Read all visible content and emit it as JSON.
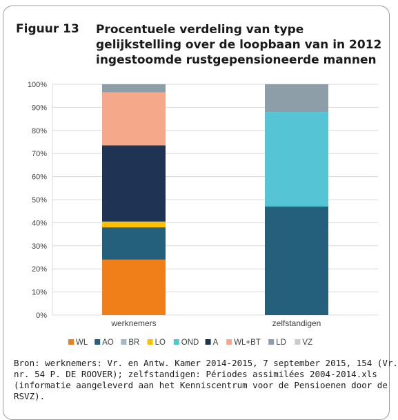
{
  "figure": {
    "label": "Figuur 13",
    "title_lines": [
      "Procentuele verdeling van type",
      "gelijkstelling over de loopbaan van in 2012",
      "ingestoomde rustgepensioneerde mannen"
    ]
  },
  "source_lines": [
    "Bron: werknemers: Vr. en Antw. Kamer 2014-2015, 7 september 2015, 154 (Vr.",
    "nr. 54 P. DE ROOVER); zelfstandigen: Périodes assimilées 2004-2014.xls",
    "(informatie aangeleverd aan het Kenniscentrum voor de Pensioenen door de",
    "RSVZ)."
  ],
  "chart_data": {
    "type": "bar",
    "stacked": true,
    "categories": [
      "werknemers",
      "zelfstandigen"
    ],
    "ylim": [
      0,
      100
    ],
    "y_ticks": [
      0,
      10,
      20,
      30,
      40,
      50,
      60,
      70,
      80,
      90,
      100
    ],
    "y_tick_labels": [
      "0%",
      "10%",
      "20%",
      "30%",
      "40%",
      "50%",
      "60%",
      "70%",
      "80%",
      "90%",
      "100%"
    ],
    "grid": true,
    "legend_position": "bottom",
    "series": [
      {
        "name": "WL",
        "color": "#f07f1a",
        "values": [
          24,
          0
        ]
      },
      {
        "name": "AO",
        "color": "#24607b",
        "values": [
          14,
          47
        ]
      },
      {
        "name": "BR",
        "color": "#a3b8c4",
        "values": [
          0,
          0
        ]
      },
      {
        "name": "LO",
        "color": "#ffc000",
        "values": [
          2.5,
          0
        ]
      },
      {
        "name": "OND",
        "color": "#55c5d5",
        "values": [
          0,
          41
        ]
      },
      {
        "name": "A",
        "color": "#1f3454",
        "values": [
          33,
          0
        ]
      },
      {
        "name": "WL+BT",
        "color": "#f5a98a",
        "values": [
          23,
          0
        ]
      },
      {
        "name": "LD",
        "color": "#8d9ea8",
        "values": [
          3.5,
          12
        ]
      },
      {
        "name": "VZ",
        "color": "#c8ccce",
        "values": [
          0,
          0
        ]
      }
    ]
  }
}
